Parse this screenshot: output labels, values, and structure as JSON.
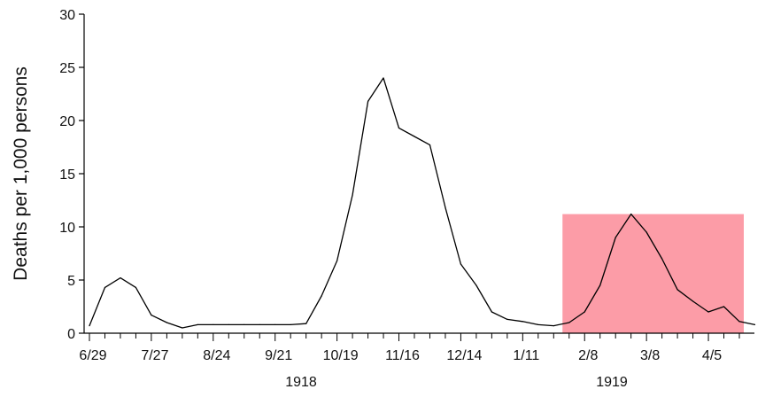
{
  "chart_data": {
    "type": "line",
    "ylabel": "Deaths per 1,000 persons",
    "xlabel": "",
    "ylim": [
      0,
      30
    ],
    "yticks": [
      0,
      5,
      10,
      15,
      20,
      25,
      30
    ],
    "x_tick_labels": [
      "6/29",
      "7/27",
      "8/24",
      "9/21",
      "10/19",
      "11/16",
      "12/14",
      "1/11",
      "2/8",
      "3/8",
      "4/5"
    ],
    "year_labels": [
      "1918",
      "1919"
    ],
    "grid": false,
    "colors": {
      "line": "#000000",
      "highlight": "#fc9ca7",
      "axis": "#000000"
    },
    "highlight": {
      "x_start": "1919-01-29",
      "x_end": "1919-04-21",
      "y_top": 11.2
    },
    "series": [
      {
        "x": [
          "1918-06-29",
          "1918-07-06",
          "1918-07-13",
          "1918-07-20",
          "1918-07-27",
          "1918-08-03",
          "1918-08-10",
          "1918-08-17",
          "1918-08-24",
          "1918-08-31",
          "1918-09-07",
          "1918-09-14",
          "1918-09-21",
          "1918-09-28",
          "1918-10-05",
          "1918-10-12",
          "1918-10-19",
          "1918-10-26",
          "1918-11-02",
          "1918-11-09",
          "1918-11-16",
          "1918-11-23",
          "1918-11-30",
          "1918-12-07",
          "1918-12-14",
          "1918-12-21",
          "1918-12-28",
          "1919-01-04",
          "1919-01-11",
          "1919-01-18",
          "1919-01-25",
          "1919-02-01",
          "1919-02-08",
          "1919-02-15",
          "1919-02-22",
          "1919-03-01",
          "1919-03-08",
          "1919-03-15",
          "1919-03-22",
          "1919-03-29",
          "1919-04-05",
          "1919-04-12",
          "1919-04-19",
          "1919-04-26"
        ],
        "values": [
          0.7,
          4.3,
          5.2,
          4.3,
          1.7,
          1.0,
          0.5,
          0.8,
          0.8,
          0.8,
          0.8,
          0.8,
          0.8,
          0.8,
          0.9,
          3.5,
          6.8,
          13.0,
          21.8,
          24.0,
          19.3,
          18.5,
          17.7,
          11.8,
          6.5,
          4.5,
          2.0,
          1.3,
          1.1,
          0.8,
          0.7,
          1.0,
          2.0,
          4.5,
          9.0,
          11.2,
          9.5,
          7.0,
          4.1,
          3.0,
          2.0,
          2.5,
          1.1,
          0.8
        ]
      }
    ]
  }
}
